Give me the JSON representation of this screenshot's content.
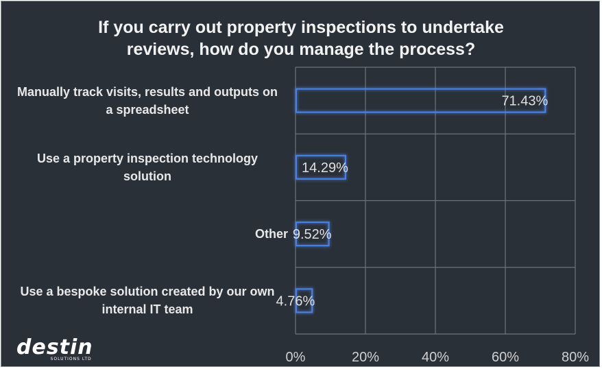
{
  "chart_data": {
    "type": "bar",
    "orientation": "horizontal",
    "title_lines": [
      "If you carry out property inspections to undertake",
      "reviews, how do you manage the process?"
    ],
    "categories": [
      [
        "Manually track visits, results and outputs on",
        "a spreadsheet"
      ],
      [
        "Use a property inspection technology",
        "solution"
      ],
      [
        "Other"
      ],
      [
        "Use a bespoke solution created by our own",
        "internal IT team"
      ]
    ],
    "values": [
      71.43,
      14.29,
      9.52,
      4.76
    ],
    "value_labels": [
      "71.43%",
      "14.29%",
      "9.52%",
      "4.76%"
    ],
    "xlim": [
      0,
      80
    ],
    "x_ticks": [
      "0%",
      "20%",
      "40%",
      "60%",
      "80%"
    ],
    "grid": true,
    "colors": {
      "background": "#2a3038",
      "bar_edge": "#4a7fe0",
      "grid": "#6e737a",
      "text": "#e8e8e8"
    }
  },
  "logo": {
    "word": "destin",
    "sub": "SOLUTIONS LTD"
  }
}
